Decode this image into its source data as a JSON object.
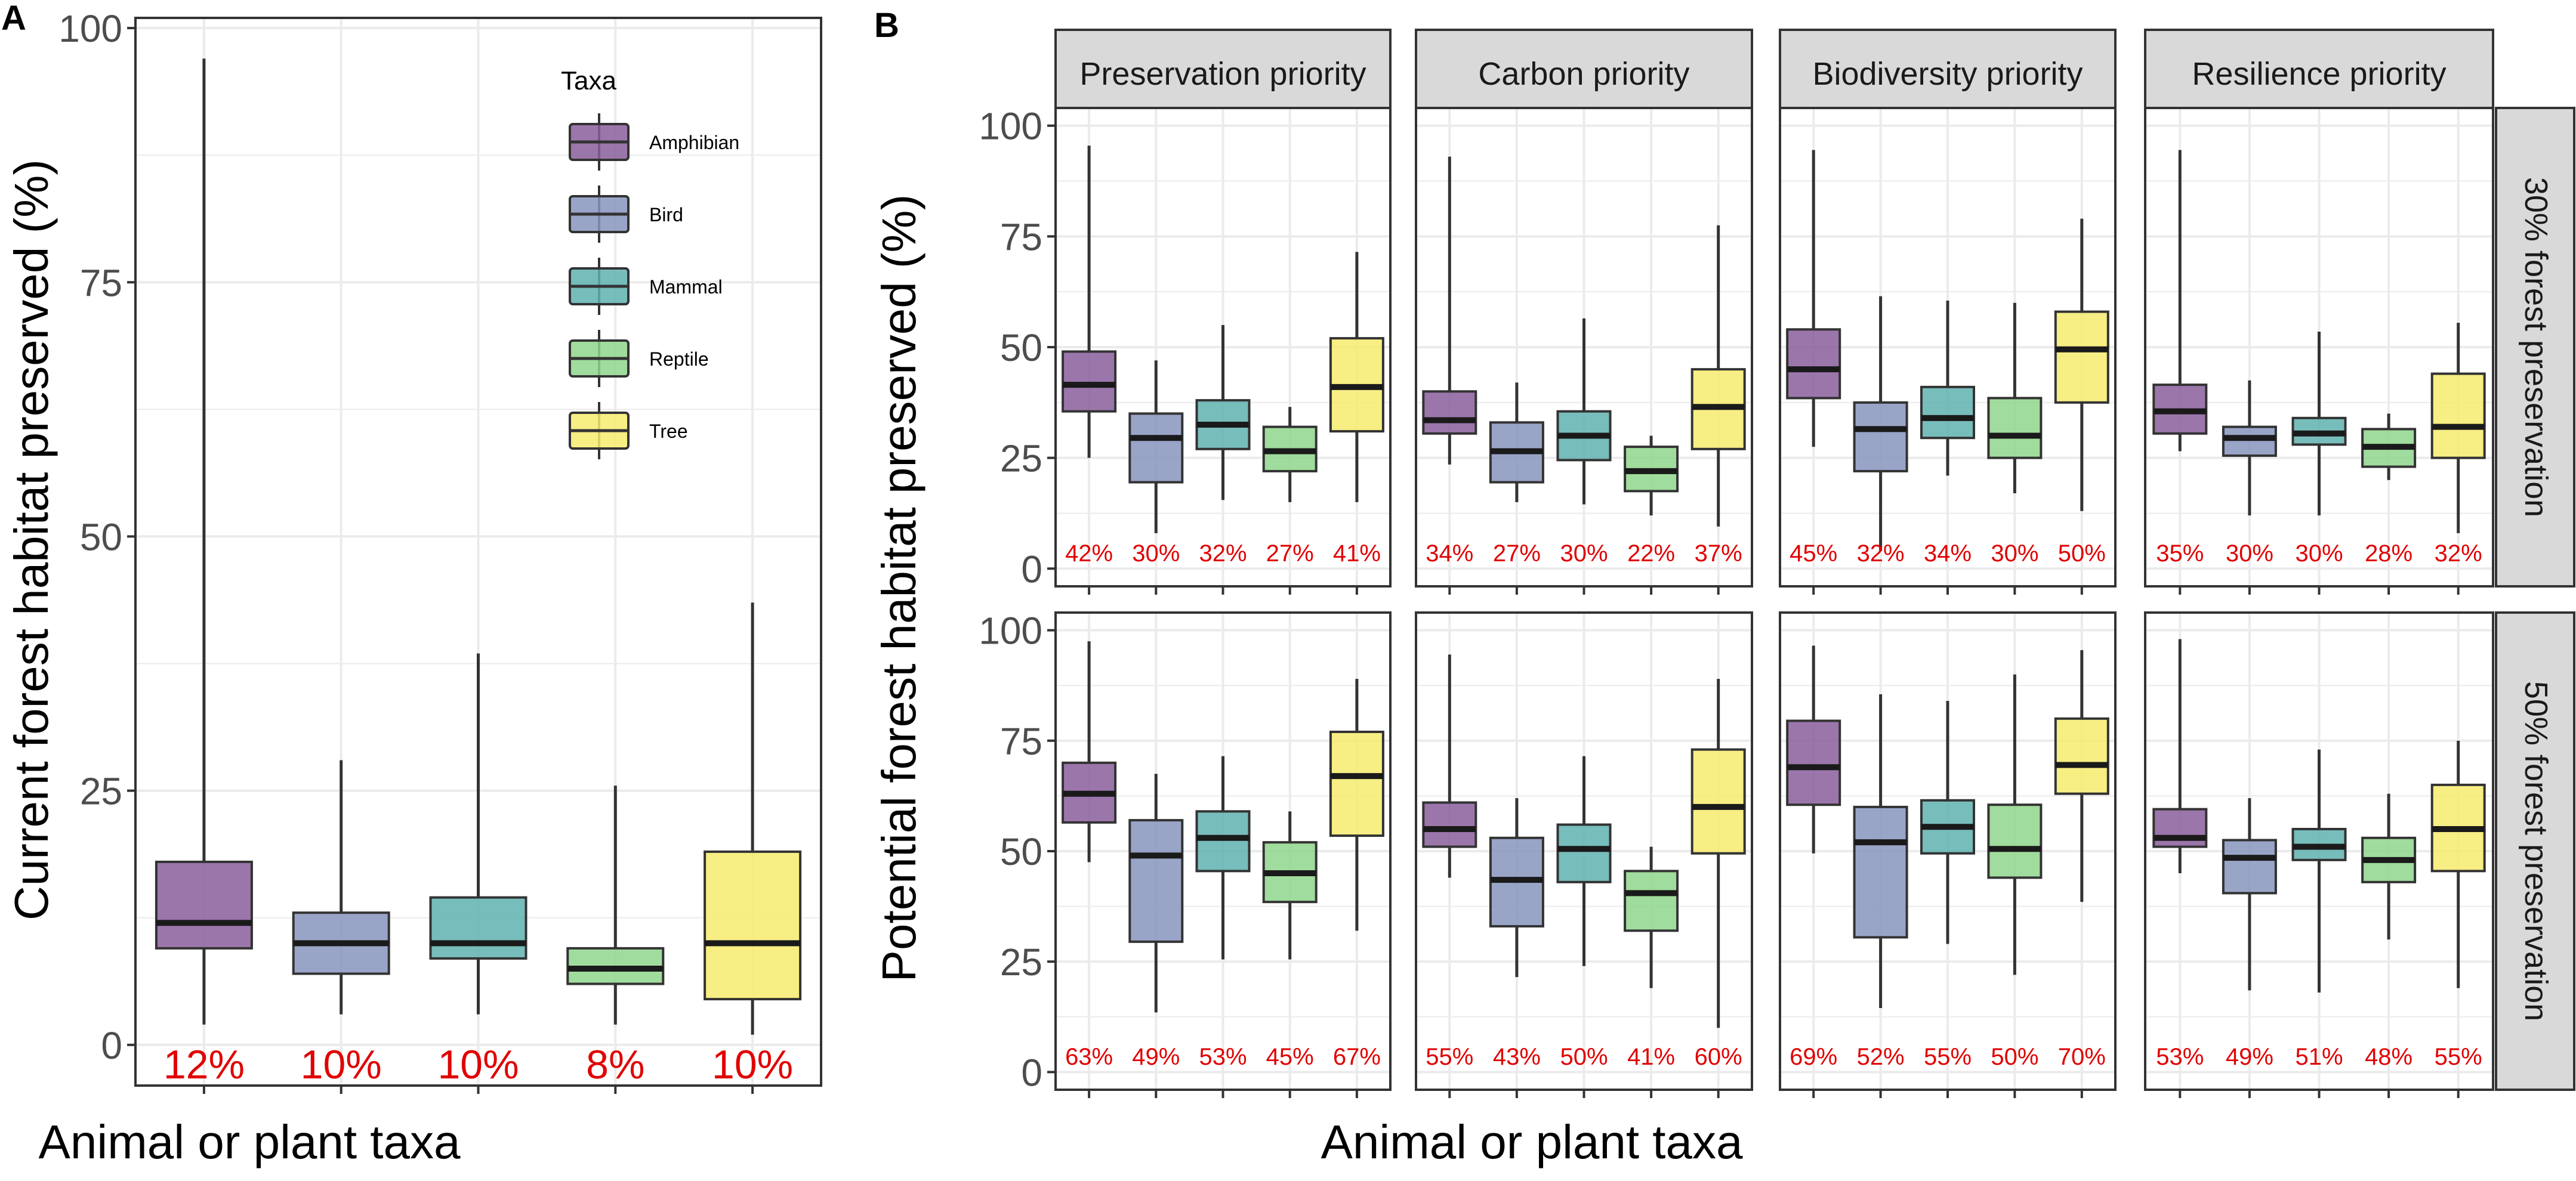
{
  "colors": {
    "Amphibian": "#8a5e9c",
    "Bird": "#8795bd",
    "Mammal": "#5fb2b0",
    "Reptile": "#8fd68c",
    "Tree": "#f6eb6f",
    "label": "#e00000",
    "grid": "#ebebeb",
    "strip_bg": "#d9d9d9"
  },
  "chart_data": [
    {
      "panel_label": "A",
      "type": "boxplot",
      "xlabel": "Animal or plant taxa",
      "ylabel": "Current forest habitat preserved (%)",
      "ylim": [
        -4,
        101
      ],
      "yticks": [
        "0",
        "25",
        "50",
        "75",
        "100"
      ],
      "legend_title": "Taxa",
      "categories": [
        "Amphibian",
        "Bird",
        "Mammal",
        "Reptile",
        "Tree"
      ],
      "boxes": [
        {
          "low": 2,
          "q1": 9.5,
          "median": 12,
          "q3": 18,
          "high": 97,
          "label": "12%"
        },
        {
          "low": 3,
          "q1": 7,
          "median": 10,
          "q3": 13,
          "high": 28,
          "label": "10%"
        },
        {
          "low": 3,
          "q1": 8.5,
          "median": 10,
          "q3": 14.5,
          "high": 38.5,
          "label": "10%"
        },
        {
          "low": 2,
          "q1": 6,
          "median": 7.5,
          "q3": 9.5,
          "high": 25.5,
          "label": "8%"
        },
        {
          "low": 1,
          "q1": 4.5,
          "median": 10,
          "q3": 19,
          "high": 43.5,
          "label": "10%"
        }
      ]
    },
    {
      "panel_label": "B",
      "type": "boxplot",
      "xlabel": "Animal or plant taxa",
      "ylabel": "Potential forest habitat preserved (%)",
      "ylim": [
        -4,
        104
      ],
      "yticks": [
        "0",
        "25",
        "50",
        "75",
        "100"
      ],
      "categories": [
        "Amphibian",
        "Bird",
        "Mammal",
        "Reptile",
        "Tree"
      ],
      "col_facets": [
        "Preservation priority",
        "Carbon priority",
        "Biodiversity priority",
        "Resilience priority"
      ],
      "row_facets": [
        "30% forest preservation",
        "50% forest preservation"
      ],
      "panels": [
        {
          "col": 0,
          "row": 0,
          "boxes": [
            {
              "low": 25,
              "q1": 35.5,
              "median": 41.5,
              "q3": 49,
              "high": 95.5,
              "label": "42%"
            },
            {
              "low": 8,
              "q1": 19.5,
              "median": 29.5,
              "q3": 35,
              "high": 47,
              "label": "30%"
            },
            {
              "low": 15.5,
              "q1": 27,
              "median": 32.5,
              "q3": 38,
              "high": 55,
              "label": "32%"
            },
            {
              "low": 15,
              "q1": 22,
              "median": 26.5,
              "q3": 32,
              "high": 36.5,
              "label": "27%"
            },
            {
              "low": 15,
              "q1": 31,
              "median": 41,
              "q3": 52,
              "high": 71.5,
              "label": "41%"
            }
          ]
        },
        {
          "col": 1,
          "row": 0,
          "boxes": [
            {
              "low": 23.5,
              "q1": 30.5,
              "median": 33.5,
              "q3": 40,
              "high": 93,
              "label": "34%"
            },
            {
              "low": 15,
              "q1": 19.5,
              "median": 26.5,
              "q3": 33,
              "high": 42,
              "label": "27%"
            },
            {
              "low": 14.5,
              "q1": 24.5,
              "median": 30,
              "q3": 35.5,
              "high": 56.5,
              "label": "30%"
            },
            {
              "low": 12,
              "q1": 17.5,
              "median": 22,
              "q3": 27.5,
              "high": 30,
              "label": "22%"
            },
            {
              "low": 9.5,
              "q1": 27,
              "median": 36.5,
              "q3": 45,
              "high": 77.5,
              "label": "37%"
            }
          ]
        },
        {
          "col": 2,
          "row": 0,
          "boxes": [
            {
              "low": 27.5,
              "q1": 38.5,
              "median": 45,
              "q3": 54,
              "high": 94.5,
              "label": "45%"
            },
            {
              "low": 4,
              "q1": 22,
              "median": 31.5,
              "q3": 37.5,
              "high": 61.5,
              "label": "32%"
            },
            {
              "low": 21,
              "q1": 29.5,
              "median": 34,
              "q3": 41,
              "high": 60.5,
              "label": "34%"
            },
            {
              "low": 17,
              "q1": 25,
              "median": 30,
              "q3": 38.5,
              "high": 60,
              "label": "30%"
            },
            {
              "low": 13,
              "q1": 37.5,
              "median": 49.5,
              "q3": 58,
              "high": 79,
              "label": "50%"
            }
          ]
        },
        {
          "col": 3,
          "row": 0,
          "boxes": [
            {
              "low": 26.5,
              "q1": 30.5,
              "median": 35.5,
              "q3": 41.5,
              "high": 94.5,
              "label": "35%"
            },
            {
              "low": 12,
              "q1": 25.5,
              "median": 29.5,
              "q3": 32,
              "high": 42.5,
              "label": "30%"
            },
            {
              "low": 12,
              "q1": 28,
              "median": 30.5,
              "q3": 34,
              "high": 53.5,
              "label": "30%"
            },
            {
              "low": 20,
              "q1": 23,
              "median": 27.5,
              "q3": 31.5,
              "high": 35,
              "label": "28%"
            },
            {
              "low": 8,
              "q1": 25,
              "median": 32,
              "q3": 44,
              "high": 55.5,
              "label": "32%"
            }
          ]
        },
        {
          "col": 0,
          "row": 1,
          "boxes": [
            {
              "low": 47.5,
              "q1": 56.5,
              "median": 63,
              "q3": 70,
              "high": 97.5,
              "label": "63%"
            },
            {
              "low": 13.5,
              "q1": 29.5,
              "median": 49,
              "q3": 57,
              "high": 67.5,
              "label": "49%"
            },
            {
              "low": 25.5,
              "q1": 45.5,
              "median": 53,
              "q3": 59,
              "high": 71.5,
              "label": "53%"
            },
            {
              "low": 25.5,
              "q1": 38.5,
              "median": 45,
              "q3": 52,
              "high": 59,
              "label": "45%"
            },
            {
              "low": 32,
              "q1": 53.5,
              "median": 67,
              "q3": 77,
              "high": 89,
              "label": "67%"
            }
          ]
        },
        {
          "col": 1,
          "row": 1,
          "boxes": [
            {
              "low": 44,
              "q1": 51,
              "median": 55,
              "q3": 61,
              "high": 94.5,
              "label": "55%"
            },
            {
              "low": 21.5,
              "q1": 33,
              "median": 43.5,
              "q3": 53,
              "high": 62,
              "label": "43%"
            },
            {
              "low": 24,
              "q1": 43,
              "median": 50.5,
              "q3": 56,
              "high": 71.5,
              "label": "50%"
            },
            {
              "low": 19,
              "q1": 32,
              "median": 40.5,
              "q3": 45.5,
              "high": 51,
              "label": "41%"
            },
            {
              "low": 10,
              "q1": 49.5,
              "median": 60,
              "q3": 73,
              "high": 89,
              "label": "60%"
            }
          ]
        },
        {
          "col": 2,
          "row": 1,
          "boxes": [
            {
              "low": 49.5,
              "q1": 60.5,
              "median": 69,
              "q3": 79.5,
              "high": 96.5,
              "label": "69%"
            },
            {
              "low": 14.5,
              "q1": 30.5,
              "median": 52,
              "q3": 60,
              "high": 85.5,
              "label": "52%"
            },
            {
              "low": 29,
              "q1": 49.5,
              "median": 55.5,
              "q3": 61.5,
              "high": 84,
              "label": "55%"
            },
            {
              "low": 22,
              "q1": 44,
              "median": 50.5,
              "q3": 60.5,
              "high": 90,
              "label": "50%"
            },
            {
              "low": 38.5,
              "q1": 63,
              "median": 69.5,
              "q3": 80,
              "high": 95.5,
              "label": "70%"
            }
          ]
        },
        {
          "col": 3,
          "row": 1,
          "boxes": [
            {
              "low": 45,
              "q1": 51,
              "median": 53,
              "q3": 59.5,
              "high": 98,
              "label": "53%"
            },
            {
              "low": 18.5,
              "q1": 40.5,
              "median": 48.5,
              "q3": 52.5,
              "high": 62,
              "label": "49%"
            },
            {
              "low": 18,
              "q1": 48,
              "median": 51,
              "q3": 55,
              "high": 73,
              "label": "51%"
            },
            {
              "low": 30,
              "q1": 43,
              "median": 48,
              "q3": 53,
              "high": 63,
              "label": "48%"
            },
            {
              "low": 19,
              "q1": 45.5,
              "median": 55,
              "q3": 65,
              "high": 75,
              "label": "55%"
            }
          ]
        }
      ]
    }
  ]
}
